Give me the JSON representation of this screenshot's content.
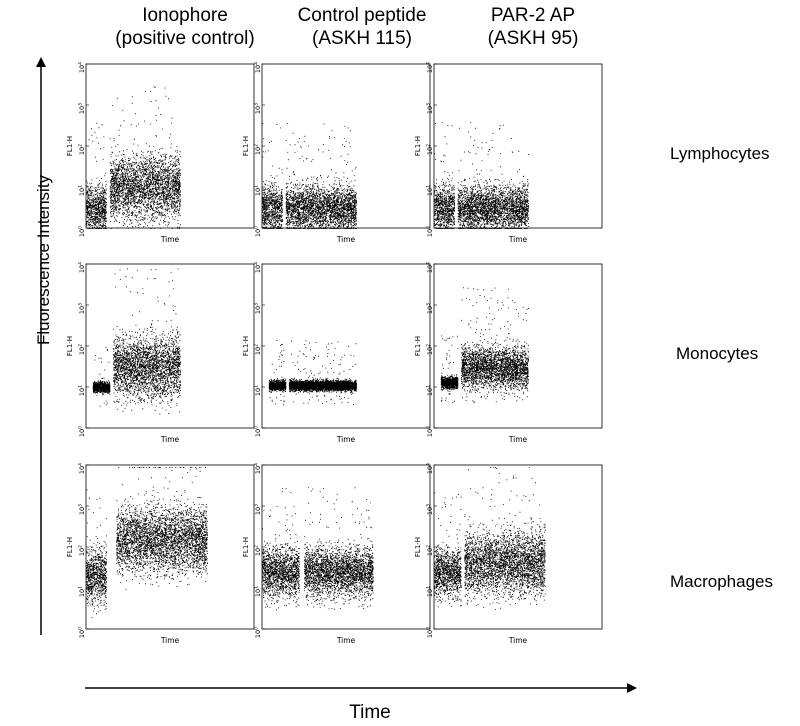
{
  "columns": [
    {
      "line1": "Ionophore",
      "line2": "(positive control)"
    },
    {
      "line1": "Control peptide",
      "line2": "(ASKH 115)"
    },
    {
      "line1": "PAR-2  AP",
      "line2": "(ASKH 95)"
    }
  ],
  "rows": [
    "Lymphocytes",
    "Monocytes",
    "Macrophages"
  ],
  "y_axis_title": "Fluorescence Intensity",
  "x_axis_title": "Time",
  "chart_data": {
    "type": "scatter",
    "panel_xlabel": "Time",
    "panel_ylabel": "FL1-H",
    "yscale": "log",
    "ylim": [
      1,
      10000
    ],
    "y_ticks": [
      {
        "base": "10",
        "exp": "0"
      },
      {
        "base": "10",
        "exp": "1"
      },
      {
        "base": "10",
        "exp": "2"
      },
      {
        "base": "10",
        "exp": "3"
      },
      {
        "base": "10",
        "exp": "4"
      }
    ],
    "xlim": [
      0,
      1
    ],
    "panels": [
      {
        "row": "Lymphocytes",
        "column": "Ionophore (positive control)",
        "baseline": {
          "x": [
            0.0,
            0.12
          ],
          "y_median": 3,
          "y_spread": [
            1,
            8
          ]
        },
        "after_stimulus": {
          "x": [
            0.14,
            0.56
          ],
          "y_median": 10,
          "y_spread": [
            2,
            30
          ]
        }
      },
      {
        "row": "Lymphocytes",
        "column": "Control peptide (ASKH 115)",
        "baseline": {
          "x": [
            0.0,
            0.12
          ],
          "y_median": 3,
          "y_spread": [
            1,
            8
          ]
        },
        "after_stimulus": {
          "x": [
            0.14,
            0.56
          ],
          "y_median": 3,
          "y_spread": [
            1,
            8
          ]
        }
      },
      {
        "row": "Lymphocytes",
        "column": "PAR-2 AP (ASKH 95)",
        "baseline": {
          "x": [
            0.0,
            0.12
          ],
          "y_median": 3,
          "y_spread": [
            1,
            8
          ]
        },
        "after_stimulus": {
          "x": [
            0.14,
            0.56
          ],
          "y_median": 3,
          "y_spread": [
            1,
            8
          ]
        }
      },
      {
        "row": "Monocytes",
        "column": "Ionophore (positive control)",
        "baseline": {
          "x": [
            0.04,
            0.14
          ],
          "y_median": 10,
          "y_spread": [
            8,
            13
          ]
        },
        "after_stimulus": {
          "x": [
            0.16,
            0.56
          ],
          "y_median": 30,
          "y_spread": [
            10,
            150
          ]
        }
      },
      {
        "row": "Monocytes",
        "column": "Control peptide (ASKH 115)",
        "baseline": {
          "x": [
            0.04,
            0.14
          ],
          "y_median": 11,
          "y_spread": [
            9,
            14
          ]
        },
        "after_stimulus": {
          "x": [
            0.16,
            0.56
          ],
          "y_median": 11,
          "y_spread": [
            9,
            14
          ]
        }
      },
      {
        "row": "Monocytes",
        "column": "PAR-2 AP (ASKH 95)",
        "baseline": {
          "x": [
            0.04,
            0.14
          ],
          "y_median": 13,
          "y_spread": [
            10,
            17
          ]
        },
        "after_stimulus": {
          "x": [
            0.16,
            0.56
          ],
          "y_median": 30,
          "y_spread": [
            12,
            80
          ]
        }
      },
      {
        "row": "Macrophages",
        "column": "Ionophore (positive control)",
        "baseline": {
          "x": [
            0.0,
            0.12
          ],
          "y_median": 20,
          "y_spread": [
            5,
            60
          ]
        },
        "after_stimulus": {
          "x": [
            0.18,
            0.72
          ],
          "y_median": 150,
          "y_spread": [
            30,
            500
          ]
        }
      },
      {
        "row": "Macrophages",
        "column": "Control peptide (ASKH 115)",
        "baseline": {
          "x": [
            0.0,
            0.22
          ],
          "y_median": 25,
          "y_spread": [
            8,
            70
          ]
        },
        "after_stimulus": {
          "x": [
            0.25,
            0.66
          ],
          "y_median": 25,
          "y_spread": [
            8,
            70
          ]
        }
      },
      {
        "row": "Macrophages",
        "column": "PAR-2 AP (ASKH 95)",
        "baseline": {
          "x": [
            0.0,
            0.16
          ],
          "y_median": 25,
          "y_spread": [
            8,
            70
          ]
        },
        "after_stimulus": {
          "x": [
            0.18,
            0.66
          ],
          "y_median": 40,
          "y_spread": [
            10,
            150
          ]
        }
      }
    ]
  }
}
